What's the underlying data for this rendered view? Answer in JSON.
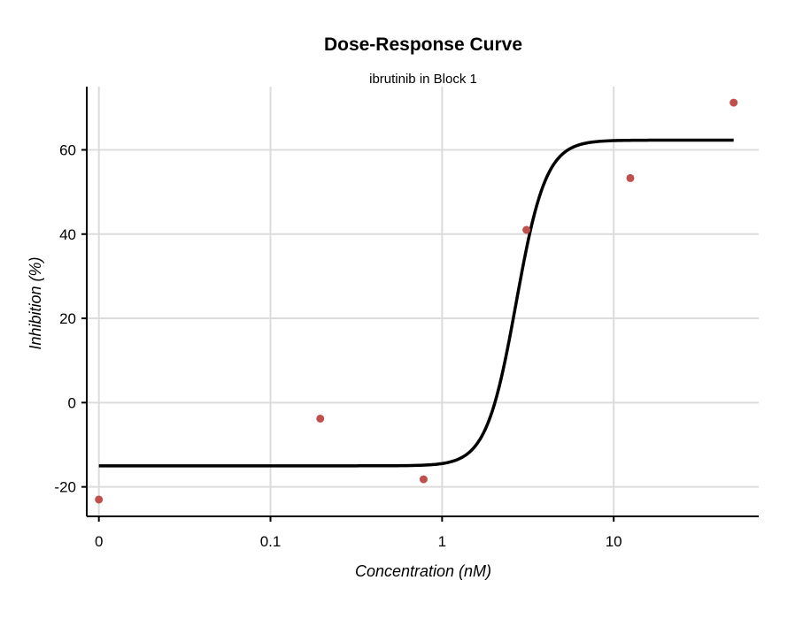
{
  "chart_data": {
    "type": "scatter",
    "title": "Dose-Response Curve",
    "subtitle": "ibrutinib in Block 1",
    "xlabel": "Concentration (nM)",
    "ylabel": "Inhibition (%)",
    "x_scale": "log",
    "x_ticks": [
      {
        "value": 0.01,
        "label": "0"
      },
      {
        "value": 0.1,
        "label": "0.1"
      },
      {
        "value": 1,
        "label": "1"
      },
      {
        "value": 10,
        "label": "10"
      }
    ],
    "y_ticks": [
      -20,
      0,
      20,
      40,
      60
    ],
    "xlim": [
      0.0085,
      70
    ],
    "ylim": [
      -27,
      75
    ],
    "grid": true,
    "points_color": "#c0504d",
    "curve_color": "#000000",
    "points": [
      {
        "x": 0.01,
        "y": -23
      },
      {
        "x": 0.195,
        "y": -3.8
      },
      {
        "x": 0.78,
        "y": -18.2
      },
      {
        "x": 3.1,
        "y": 41
      },
      {
        "x": 12.5,
        "y": 53.3
      },
      {
        "x": 50,
        "y": 71.2
      }
    ],
    "fit": {
      "bottom": -15,
      "top": 62.3,
      "ec50": 2.7,
      "hill": 5,
      "x_range": [
        0.01,
        50
      ]
    }
  }
}
